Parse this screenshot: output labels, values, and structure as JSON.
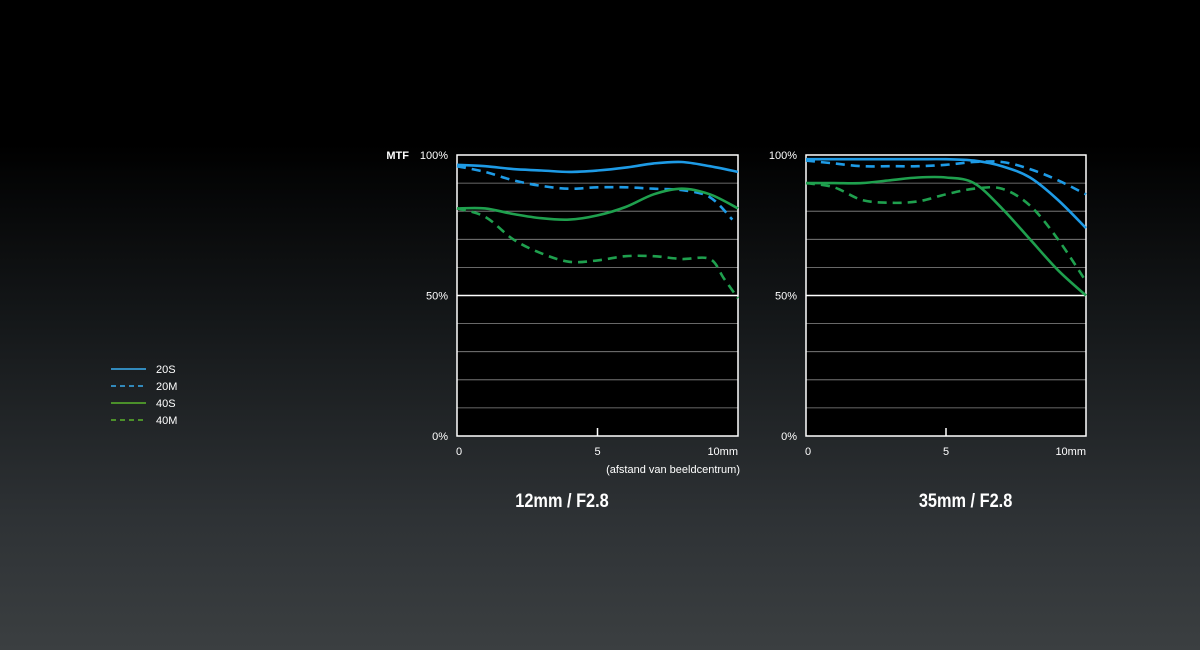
{
  "colors": {
    "blue": "#1e9be6",
    "green": "#1fa04e",
    "legend_blue": "#3aaef0",
    "legend_green": "#5ab32c",
    "grid": "#8a8a8a",
    "frame": "#ffffff"
  },
  "legend": [
    {
      "label": "20S",
      "color_key": "legend_blue",
      "dashed": false
    },
    {
      "label": "20M",
      "color_key": "legend_blue",
      "dashed": true
    },
    {
      "label": "40S",
      "color_key": "legend_green",
      "dashed": false
    },
    {
      "label": "40M",
      "color_key": "legend_green",
      "dashed": true
    }
  ],
  "chart_data": [
    {
      "type": "line",
      "title": "12mm / F2.8",
      "ylabel": "MTF",
      "xlabel": "(afstand van beeldcentrum)",
      "xlim": [
        0,
        10
      ],
      "ylim": [
        0,
        100
      ],
      "xticks": [
        "0",
        "5",
        "10mm"
      ],
      "yticks": [
        "0%",
        "50%",
        "100%"
      ],
      "grid": true,
      "series": [
        {
          "name": "20S",
          "color_key": "blue",
          "dashed": false,
          "x": [
            0,
            1,
            2,
            3,
            4,
            5,
            6,
            7,
            8,
            9,
            10
          ],
          "y": [
            96.5,
            96,
            95,
            94.5,
            94,
            94.5,
            95.5,
            97,
            97.5,
            96,
            94
          ]
        },
        {
          "name": "20M",
          "color_key": "blue",
          "dashed": true,
          "x": [
            0,
            1,
            2,
            3,
            4,
            5,
            6,
            7,
            8,
            9,
            9.8
          ],
          "y": [
            96,
            94,
            91,
            89,
            88,
            88.5,
            88.5,
            88,
            87.5,
            85,
            77
          ]
        },
        {
          "name": "40S",
          "color_key": "green",
          "dashed": false,
          "x": [
            0,
            1,
            2,
            3,
            4,
            5,
            6,
            7,
            8,
            9,
            10
          ],
          "y": [
            81,
            81,
            79,
            77.5,
            77,
            78.5,
            81.5,
            86,
            88,
            86,
            81
          ]
        },
        {
          "name": "40M",
          "color_key": "green",
          "dashed": true,
          "x": [
            0,
            1,
            2,
            3,
            4,
            5,
            6,
            7,
            8,
            9,
            9.5,
            10
          ],
          "y": [
            81,
            78,
            70,
            65,
            62,
            62.5,
            64,
            64,
            63,
            63,
            56,
            49
          ]
        }
      ]
    },
    {
      "type": "line",
      "title": "35mm / F2.8",
      "ylabel": "",
      "xlabel": "",
      "xlim": [
        0,
        10
      ],
      "ylim": [
        0,
        100
      ],
      "xticks": [
        "0",
        "5",
        "10mm"
      ],
      "yticks": [
        "0%",
        "50%",
        "100%"
      ],
      "grid": true,
      "series": [
        {
          "name": "20S",
          "color_key": "blue",
          "dashed": false,
          "x": [
            0,
            1,
            2,
            3,
            4,
            5,
            6,
            7,
            8,
            9,
            10
          ],
          "y": [
            98.5,
            98.5,
            98.5,
            98.5,
            98.5,
            98.5,
            98,
            96,
            92,
            84,
            74
          ]
        },
        {
          "name": "20M",
          "color_key": "blue",
          "dashed": true,
          "x": [
            0,
            1,
            2,
            3,
            4,
            5,
            6,
            7,
            8,
            9,
            10
          ],
          "y": [
            98,
            97,
            96,
            96,
            96,
            96.5,
            97.5,
            97.5,
            95,
            91,
            86
          ]
        },
        {
          "name": "40S",
          "color_key": "green",
          "dashed": false,
          "x": [
            0,
            1,
            2,
            3,
            4,
            5,
            6,
            7,
            8,
            9,
            10
          ],
          "y": [
            90,
            90,
            90,
            91,
            92,
            92,
            90,
            81,
            70,
            59,
            50
          ]
        },
        {
          "name": "40M",
          "color_key": "green",
          "dashed": true,
          "x": [
            0,
            1,
            2,
            3,
            4,
            5,
            6,
            7,
            8,
            9,
            10
          ],
          "y": [
            90,
            88.5,
            84,
            83,
            83.5,
            86,
            88,
            88,
            82,
            70,
            55
          ]
        }
      ]
    }
  ]
}
